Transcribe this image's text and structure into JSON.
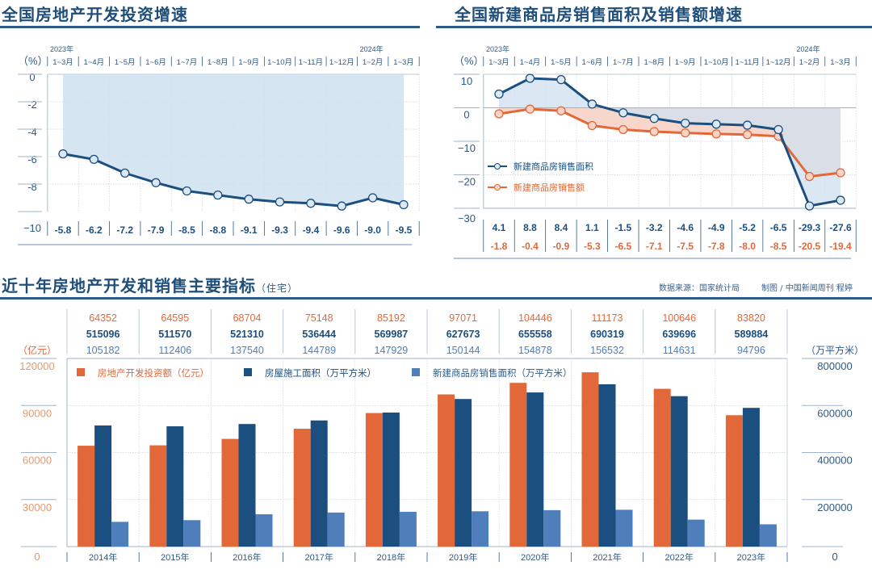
{
  "left_title": "全国房地产开发投资增速",
  "right_title": "全国新建商品房销售面积及销售额增速",
  "bottom_title": "近十年房地产开发和销售主要指标",
  "bottom_subtitle": "（住宅）",
  "source": "数据来源：国家统计局",
  "credit": "制图 / 中国新闻周刊  程婷",
  "colors": {
    "navy": "#1b4f80",
    "orange": "#e2683a",
    "light_blue": "#4f7fbb",
    "area_blue": "#cfe0f0",
    "area_orange": "#f6d3c6",
    "text_blue": "#2c5a86"
  },
  "chart_data": [
    {
      "type": "line",
      "title": "全国房地产开发投资增速",
      "unit_label": "（%）",
      "year_labels": [
        "2023年",
        "2024年"
      ],
      "categories": [
        "1~3月",
        "1~4月",
        "1~5月",
        "1~6月",
        "1~7月",
        "1~8月",
        "1~9月",
        "1~10月",
        "1~11月",
        "1~12月",
        "1~2月",
        "1~3月"
      ],
      "yticks": [
        "0",
        "-2",
        "-4",
        "-6",
        "-8",
        "−10"
      ],
      "ylim": [
        -10,
        0
      ],
      "series": [
        {
          "name": "房地产开发投资增速",
          "values": [
            -5.8,
            -6.2,
            -7.2,
            -7.9,
            -8.5,
            -8.8,
            -9.1,
            -9.3,
            -9.4,
            -9.6,
            -9.0,
            -9.5
          ],
          "labels": [
            "-5.8",
            "-6.2",
            "-7.2",
            "-7.9",
            "-8.5",
            "-8.8",
            "-9.1",
            "-9.3",
            "-9.4",
            "-9.6",
            "-9.0",
            "-9.5"
          ]
        }
      ]
    },
    {
      "type": "line",
      "title": "全国新建商品房销售面积及销售额增速",
      "unit_label": "（%）",
      "year_labels": [
        "2023年",
        "2024年"
      ],
      "categories": [
        "1~3月",
        "1~4月",
        "1~5月",
        "1~6月",
        "1~7月",
        "1~8月",
        "1~9月",
        "1~10月",
        "1~11月",
        "1~12月",
        "1~2月",
        "1~3月"
      ],
      "yticks": [
        "10",
        "0",
        "−10",
        "−20",
        "−30"
      ],
      "ylim": [
        -30,
        10
      ],
      "legend": "left",
      "series": [
        {
          "name": "新建商品房销售面积",
          "values": [
            4.1,
            8.8,
            8.4,
            1.1,
            -1.5,
            -3.2,
            -4.6,
            -4.9,
            -5.2,
            -6.5,
            -29.3,
            -27.6
          ],
          "labels": [
            "4.1",
            "8.8",
            "8.4",
            "1.1",
            "-1.5",
            "-3.2",
            "-4.6",
            "-4.9",
            "-5.2",
            "-6.5",
            "-29.3",
            "-27.6"
          ]
        },
        {
          "name": "新建商品房销售额",
          "values": [
            -1.8,
            -0.4,
            -0.9,
            -5.3,
            -6.5,
            -7.1,
            -7.5,
            -7.8,
            -8.0,
            -8.5,
            -20.5,
            -19.4
          ],
          "labels": [
            "-1.8",
            "-0.4",
            "-0.9",
            "-5.3",
            "-6.5",
            "-7.1",
            "-7.5",
            "-7.8",
            "-8.0",
            "-8.5",
            "-20.5",
            "-19.4"
          ]
        }
      ]
    },
    {
      "type": "bar",
      "title": "近十年房地产开发和销售主要指标（住宅）",
      "categories": [
        "2014年",
        "2015年",
        "2016年",
        "2017年",
        "2018年",
        "2019年",
        "2020年",
        "2021年",
        "2022年",
        "2023年"
      ],
      "left_unit": "（亿元）",
      "right_unit": "（万平方米）",
      "left_ticks": [
        "120000",
        "90000",
        "60000",
        "30000",
        "0"
      ],
      "right_ticks": [
        "800000",
        "600000",
        "400000",
        "200000",
        "0"
      ],
      "left_ylim": [
        0,
        120000
      ],
      "right_ylim": [
        0,
        800000
      ],
      "series": [
        {
          "name": "房地产开发投资额（亿元）",
          "axis": "left",
          "values": [
            64352,
            64595,
            68704,
            75148,
            85192,
            97071,
            104446,
            111173,
            100646,
            83820
          ]
        },
        {
          "name": "房屋施工面积（万平方米）",
          "axis": "right",
          "values": [
            515096,
            511570,
            521310,
            536444,
            569987,
            627673,
            655558,
            690319,
            639696,
            589884
          ]
        },
        {
          "name": "新建商品房销售面积（万平方米）",
          "axis": "right",
          "values": [
            105182,
            112406,
            137540,
            144789,
            147929,
            150144,
            154878,
            156532,
            114631,
            94796
          ]
        }
      ]
    }
  ]
}
